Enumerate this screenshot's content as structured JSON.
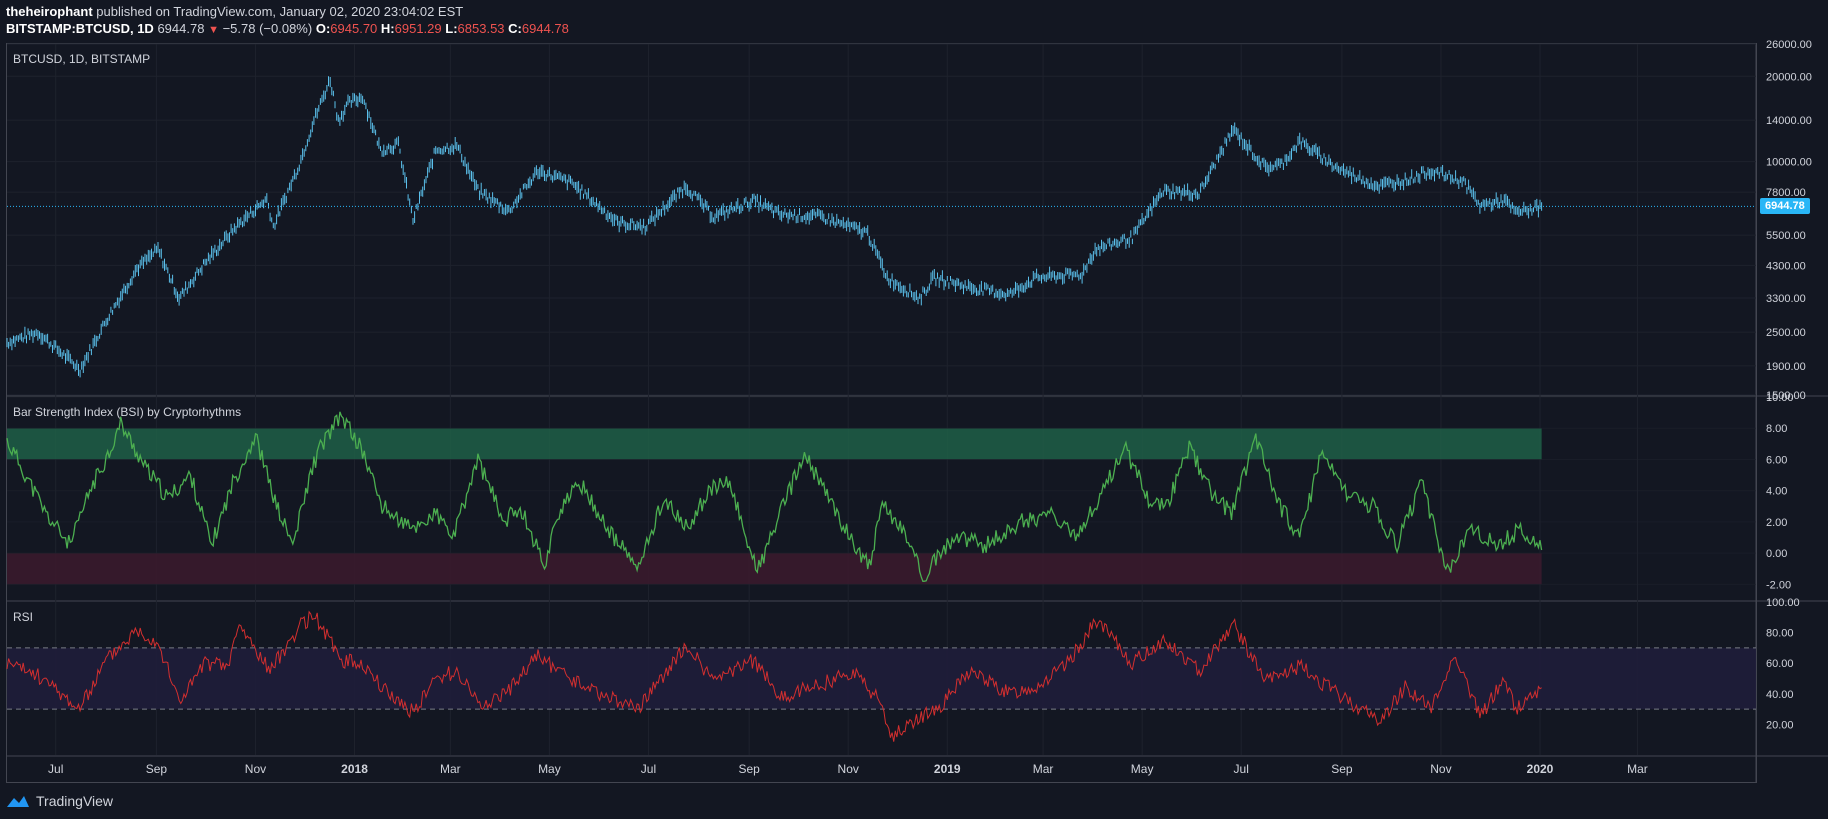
{
  "header": {
    "author": "theheirophant",
    "published": "published on TradingView.com, January 02, 2020 23:04:02 EST",
    "symbol": "BITSTAMP:BTCUSD, 1D",
    "last": "6944.78",
    "change": "−5.78 (−0.08%)",
    "o_label": "O:",
    "o": "6945.70",
    "h_label": "H:",
    "h": "6951.29",
    "l_label": "L:",
    "l": "6853.53",
    "c_label": "C:",
    "c": "6944.78"
  },
  "footer": {
    "brand": "TradingView"
  },
  "colors": {
    "background": "#131722",
    "price_bar": "#5bc0eb",
    "bsi_line": "#4caf50",
    "rsi_line": "#d32f2f",
    "upper_zone": "#1e5f46",
    "lower_zone": "#3a1a2c",
    "rsi_band": "#1f1d3a",
    "last_price": "#29b6f6"
  },
  "chart_data": [
    {
      "type": "line",
      "title": "BTCUSD, 1D, BITSTAMP",
      "scale": "log",
      "ylim": [
        1500,
        26000
      ],
      "yticks": [
        "26000.00",
        "20000.00",
        "14000.00",
        "10000.00",
        "7800.00",
        "5500.00",
        "4300.00",
        "3300.00",
        "2500.00",
        "1900.00",
        "1500.00"
      ],
      "ytick_values": [
        26000,
        20000,
        14000,
        10000,
        7800,
        5500,
        4300,
        3300,
        2500,
        1900,
        1500
      ],
      "last_price_label": "6944.78",
      "last_price": 6944.78,
      "series": [
        {
          "x": [
            "2017-06-01",
            "2017-06-20",
            "2017-07-16",
            "2017-08-01",
            "2017-08-20",
            "2017-09-02",
            "2017-09-15",
            "2017-10-01",
            "2017-10-20",
            "2017-11-08",
            "2017-11-12",
            "2017-11-28",
            "2017-12-07",
            "2017-12-17",
            "2017-12-22",
            "2017-12-28",
            "2018-01-06",
            "2018-01-17",
            "2018-01-28",
            "2018-02-06",
            "2018-02-20",
            "2018-03-05",
            "2018-03-18",
            "2018-04-06",
            "2018-04-24",
            "2018-05-15",
            "2018-06-12",
            "2018-06-29",
            "2018-07-24",
            "2018-08-10",
            "2018-09-04",
            "2018-09-20",
            "2018-10-15",
            "2018-11-13",
            "2018-11-25",
            "2018-12-15",
            "2018-12-24",
            "2019-01-15",
            "2019-02-08",
            "2019-02-25",
            "2019-03-25",
            "2019-04-02",
            "2019-04-25",
            "2019-05-14",
            "2019-06-05",
            "2019-06-26",
            "2019-07-16",
            "2019-07-26",
            "2019-08-06",
            "2019-08-29",
            "2019-09-23",
            "2019-10-10",
            "2019-10-26",
            "2019-11-15",
            "2019-11-25",
            "2019-12-10",
            "2019-12-17",
            "2020-01-02"
          ],
          "y": [
            2300,
            2500,
            1850,
            2750,
            4200,
            4900,
            3300,
            4400,
            5900,
            7400,
            5900,
            9800,
            14000,
            19500,
            14000,
            16000,
            17000,
            11000,
            11500,
            6200,
            11000,
            11400,
            7900,
            6700,
            9300,
            8400,
            6100,
            5900,
            8200,
            6400,
            7300,
            6500,
            6400,
            5600,
            3900,
            3300,
            3900,
            3600,
            3400,
            3900,
            4000,
            4900,
            5400,
            7900,
            7700,
            13000,
            9500,
            9800,
            11800,
            9500,
            8200,
            8600,
            9300,
            8500,
            7000,
            7300,
            6600,
            6945
          ]
        }
      ]
    },
    {
      "type": "line",
      "title": "Bar Strength Index (BSI) by Cryptorhythms",
      "ylim": [
        -3,
        10
      ],
      "yticks": [
        "10.00",
        "8.00",
        "6.00",
        "4.00",
        "2.00",
        "0.00",
        "-2.00"
      ],
      "ytick_values": [
        10,
        8,
        6,
        4,
        2,
        0,
        -2
      ],
      "upper_zone": [
        6,
        8
      ],
      "lower_zone": [
        -2,
        0
      ],
      "series": [
        {
          "x": [
            "2017-06-01",
            "2017-06-10",
            "2017-06-25",
            "2017-07-10",
            "2017-07-22",
            "2017-08-03",
            "2017-08-10",
            "2017-08-25",
            "2017-09-08",
            "2017-09-22",
            "2017-10-05",
            "2017-10-18",
            "2017-11-01",
            "2017-11-14",
            "2017-11-24",
            "2017-12-06",
            "2017-12-12",
            "2017-12-24",
            "2018-01-06",
            "2018-01-18",
            "2018-02-05",
            "2018-02-20",
            "2018-03-03",
            "2018-03-18",
            "2018-04-03",
            "2018-04-13",
            "2018-04-28",
            "2018-05-06",
            "2018-05-20",
            "2018-06-08",
            "2018-06-25",
            "2018-07-10",
            "2018-07-25",
            "2018-08-07",
            "2018-08-20",
            "2018-09-06",
            "2018-09-20",
            "2018-10-05",
            "2018-10-20",
            "2018-11-02",
            "2018-11-14",
            "2018-11-22",
            "2018-12-05",
            "2018-12-17",
            "2019-01-05",
            "2019-01-25",
            "2019-02-15",
            "2019-03-05",
            "2019-03-20",
            "2019-04-05",
            "2019-04-20",
            "2019-05-05",
            "2019-05-16",
            "2019-05-30",
            "2019-06-12",
            "2019-06-25",
            "2019-07-10",
            "2019-07-25",
            "2019-08-06",
            "2019-08-20",
            "2019-09-05",
            "2019-09-20",
            "2019-10-05",
            "2019-10-20",
            "2019-11-05",
            "2019-11-20",
            "2019-12-05",
            "2019-12-20",
            "2020-01-02"
          ],
          "y": [
            7.2,
            5.5,
            2.5,
            0.5,
            4.0,
            6.5,
            8.3,
            5.5,
            3.5,
            5.0,
            0.5,
            4.5,
            7.5,
            3.0,
            0.5,
            5.5,
            7.0,
            8.8,
            6.5,
            3.0,
            1.5,
            2.5,
            1.0,
            6.0,
            2.0,
            3.0,
            -0.8,
            2.5,
            4.5,
            1.2,
            -1.0,
            3.5,
            1.5,
            4.0,
            4.5,
            -1.2,
            2.5,
            6.3,
            3.5,
            1.0,
            -0.8,
            3.0,
            1.5,
            -1.5,
            1.0,
            0.5,
            2.0,
            2.5,
            1.0,
            3.5,
            6.8,
            3.5,
            3.0,
            6.8,
            4.0,
            2.5,
            7.5,
            3.0,
            1.0,
            6.5,
            3.5,
            3.0,
            0.5,
            4.5,
            -1.2,
            1.5,
            0.5,
            1.5,
            0.2
          ]
        }
      ]
    },
    {
      "type": "line",
      "title": "RSI",
      "ylim": [
        0,
        100
      ],
      "yticks": [
        "100.00",
        "80.00",
        "60.00",
        "40.00",
        "20.00"
      ],
      "ytick_values": [
        100,
        80,
        60,
        40,
        20
      ],
      "band": [
        30,
        70
      ],
      "series": [
        {
          "x": [
            "2017-06-01",
            "2017-06-20",
            "2017-07-16",
            "2017-08-01",
            "2017-08-20",
            "2017-09-02",
            "2017-09-15",
            "2017-10-01",
            "2017-10-15",
            "2017-10-22",
            "2017-11-10",
            "2017-11-28",
            "2017-12-07",
            "2017-12-24",
            "2018-01-06",
            "2018-01-17",
            "2018-02-06",
            "2018-02-20",
            "2018-03-05",
            "2018-03-20",
            "2018-04-06",
            "2018-04-24",
            "2018-05-10",
            "2018-06-05",
            "2018-06-25",
            "2018-07-24",
            "2018-08-10",
            "2018-09-04",
            "2018-09-20",
            "2018-10-15",
            "2018-11-05",
            "2018-11-20",
            "2018-11-28",
            "2018-12-15",
            "2018-12-28",
            "2019-01-15",
            "2019-02-08",
            "2019-02-25",
            "2019-03-15",
            "2019-04-03",
            "2019-04-25",
            "2019-05-14",
            "2019-06-05",
            "2019-06-26",
            "2019-07-16",
            "2019-08-06",
            "2019-08-29",
            "2019-09-25",
            "2019-10-10",
            "2019-10-26",
            "2019-11-10",
            "2019-11-25",
            "2019-12-10",
            "2019-12-17",
            "2020-01-02"
          ],
          "y": [
            60,
            52,
            30,
            62,
            82,
            74,
            35,
            60,
            58,
            85,
            55,
            84,
            92,
            62,
            60,
            45,
            28,
            50,
            55,
            32,
            42,
            65,
            52,
            38,
            30,
            72,
            48,
            62,
            38,
            46,
            55,
            35,
            12,
            25,
            32,
            55,
            40,
            45,
            58,
            88,
            60,
            75,
            55,
            86,
            48,
            58,
            40,
            22,
            45,
            30,
            66,
            25,
            50,
            30,
            44
          ]
        }
      ]
    }
  ],
  "x_axis": {
    "labels": [
      "Jul",
      "Sep",
      "Nov",
      "2018",
      "Mar",
      "May",
      "Jul",
      "Sep",
      "Nov",
      "2019",
      "Mar",
      "May",
      "Jul",
      "Sep",
      "Nov",
      "2020",
      "Mar"
    ],
    "dates": [
      "2017-07-01",
      "2017-09-01",
      "2017-11-01",
      "2018-01-01",
      "2018-03-01",
      "2018-05-01",
      "2018-07-01",
      "2018-09-01",
      "2018-11-01",
      "2019-01-01",
      "2019-03-01",
      "2019-05-01",
      "2019-07-01",
      "2019-09-01",
      "2019-11-01",
      "2020-01-01",
      "2020-03-01"
    ],
    "bold": [
      "2018",
      "2019",
      "2020"
    ]
  }
}
